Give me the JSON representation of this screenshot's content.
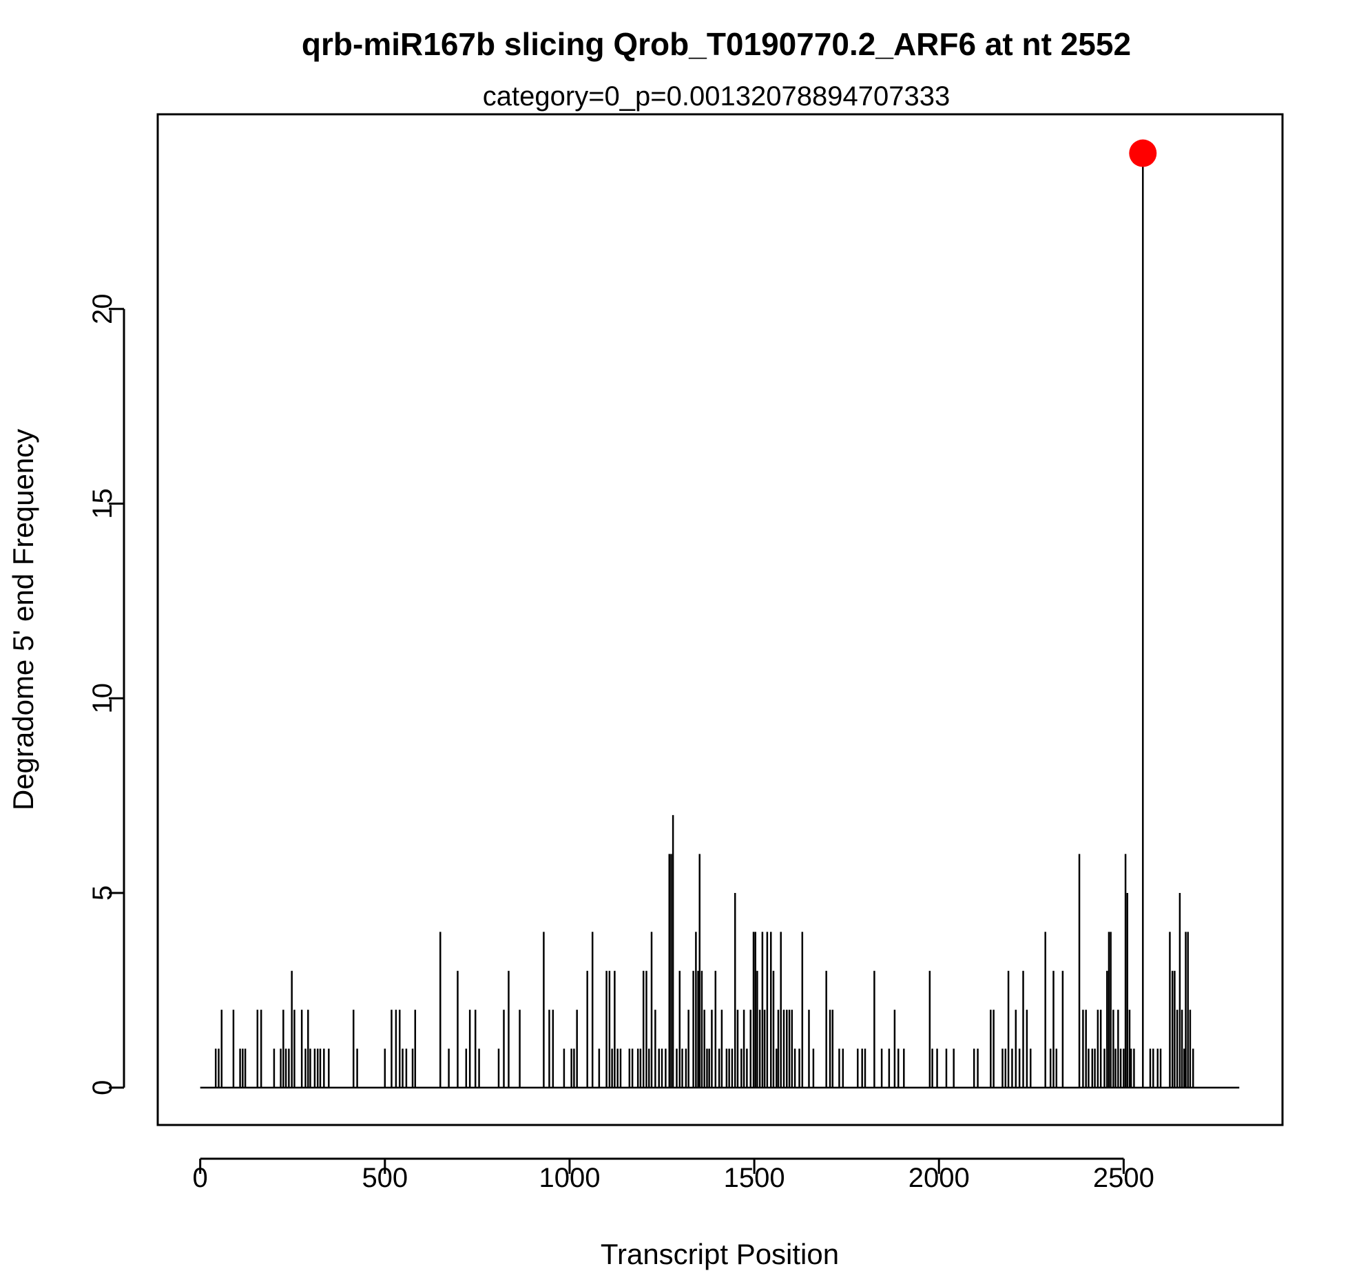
{
  "chart_data": {
    "type": "line",
    "title": "qrb-miR167b slicing Qrob_T0190770.2_ARF6 at nt 2552",
    "subtitle": "category=0_p=0.00132078894707333",
    "xlabel": "Transcript Position",
    "ylabel": "Degradome 5' end Frequency",
    "xlim": [
      -115,
      2930
    ],
    "ylim": [
      -0.96,
      25
    ],
    "grid": false,
    "x_ticks": [
      0,
      500,
      1000,
      1500,
      2000,
      2500
    ],
    "x_tick_labels": [
      "0",
      "500",
      "1000",
      "1500",
      "2000",
      "2500"
    ],
    "y_ticks": [
      0,
      5,
      10,
      15,
      20
    ],
    "y_tick_labels": [
      "0",
      "5",
      "10",
      "15",
      "20"
    ],
    "transcript_length": 2813,
    "line_color": "#000000",
    "highlight": {
      "x": 2552,
      "y": 24,
      "color": "#ff0000"
    },
    "series": [
      {
        "values": [
          [
            42,
            1
          ],
          [
            50,
            1
          ],
          [
            58,
            2
          ],
          [
            90,
            2
          ],
          [
            108,
            1
          ],
          [
            115,
            1
          ],
          [
            122,
            1
          ],
          [
            155,
            2
          ],
          [
            165,
            2
          ],
          [
            200,
            1
          ],
          [
            218,
            1
          ],
          [
            225,
            2
          ],
          [
            232,
            1
          ],
          [
            240,
            1
          ],
          [
            248,
            3
          ],
          [
            255,
            2
          ],
          [
            275,
            2
          ],
          [
            285,
            1
          ],
          [
            292,
            2
          ],
          [
            298,
            1
          ],
          [
            310,
            1
          ],
          [
            318,
            1
          ],
          [
            325,
            1
          ],
          [
            335,
            1
          ],
          [
            348,
            1
          ],
          [
            415,
            2
          ],
          [
            425,
            1
          ],
          [
            500,
            1
          ],
          [
            518,
            2
          ],
          [
            530,
            2
          ],
          [
            540,
            2
          ],
          [
            548,
            1
          ],
          [
            558,
            1
          ],
          [
            575,
            1
          ],
          [
            582,
            2
          ],
          [
            650,
            4
          ],
          [
            673,
            1
          ],
          [
            697,
            3
          ],
          [
            720,
            1
          ],
          [
            730,
            2
          ],
          [
            745,
            2
          ],
          [
            755,
            1
          ],
          [
            808,
            1
          ],
          [
            822,
            2
          ],
          [
            835,
            3
          ],
          [
            865,
            2
          ],
          [
            930,
            4
          ],
          [
            945,
            2
          ],
          [
            955,
            2
          ],
          [
            985,
            1
          ],
          [
            1005,
            1
          ],
          [
            1012,
            1
          ],
          [
            1020,
            2
          ],
          [
            1048,
            3
          ],
          [
            1062,
            4
          ],
          [
            1080,
            1
          ],
          [
            1100,
            3
          ],
          [
            1108,
            3
          ],
          [
            1115,
            1
          ],
          [
            1122,
            3
          ],
          [
            1130,
            1
          ],
          [
            1138,
            1
          ],
          [
            1162,
            1
          ],
          [
            1170,
            1
          ],
          [
            1185,
            1
          ],
          [
            1192,
            1
          ],
          [
            1200,
            3
          ],
          [
            1208,
            3
          ],
          [
            1215,
            1
          ],
          [
            1222,
            4
          ],
          [
            1232,
            2
          ],
          [
            1242,
            1
          ],
          [
            1250,
            1
          ],
          [
            1260,
            1
          ],
          [
            1270,
            6
          ],
          [
            1275,
            6
          ],
          [
            1280,
            7
          ],
          [
            1290,
            1
          ],
          [
            1298,
            3
          ],
          [
            1305,
            1
          ],
          [
            1315,
            1
          ],
          [
            1322,
            2
          ],
          [
            1335,
            3
          ],
          [
            1342,
            4
          ],
          [
            1348,
            3
          ],
          [
            1352,
            6
          ],
          [
            1358,
            3
          ],
          [
            1365,
            2
          ],
          [
            1372,
            1
          ],
          [
            1378,
            1
          ],
          [
            1385,
            2
          ],
          [
            1395,
            3
          ],
          [
            1405,
            1
          ],
          [
            1412,
            2
          ],
          [
            1425,
            1
          ],
          [
            1432,
            1
          ],
          [
            1440,
            1
          ],
          [
            1448,
            5
          ],
          [
            1455,
            2
          ],
          [
            1465,
            1
          ],
          [
            1472,
            2
          ],
          [
            1480,
            1
          ],
          [
            1490,
            2
          ],
          [
            1498,
            4
          ],
          [
            1503,
            4
          ],
          [
            1508,
            3
          ],
          [
            1515,
            2
          ],
          [
            1522,
            4
          ],
          [
            1528,
            2
          ],
          [
            1535,
            4
          ],
          [
            1545,
            4
          ],
          [
            1552,
            3
          ],
          [
            1560,
            1
          ],
          [
            1565,
            2
          ],
          [
            1572,
            4
          ],
          [
            1580,
            2
          ],
          [
            1588,
            2
          ],
          [
            1595,
            2
          ],
          [
            1602,
            2
          ],
          [
            1610,
            1
          ],
          [
            1622,
            1
          ],
          [
            1630,
            4
          ],
          [
            1648,
            2
          ],
          [
            1660,
            1
          ],
          [
            1695,
            3
          ],
          [
            1705,
            2
          ],
          [
            1712,
            2
          ],
          [
            1730,
            1
          ],
          [
            1740,
            1
          ],
          [
            1780,
            1
          ],
          [
            1792,
            1
          ],
          [
            1800,
            1
          ],
          [
            1825,
            3
          ],
          [
            1845,
            1
          ],
          [
            1865,
            1
          ],
          [
            1880,
            2
          ],
          [
            1890,
            1
          ],
          [
            1905,
            1
          ],
          [
            1975,
            3
          ],
          [
            1982,
            1
          ],
          [
            1995,
            1
          ],
          [
            2020,
            1
          ],
          [
            2040,
            1
          ],
          [
            2095,
            1
          ],
          [
            2105,
            1
          ],
          [
            2140,
            2
          ],
          [
            2148,
            2
          ],
          [
            2172,
            1
          ],
          [
            2180,
            1
          ],
          [
            2188,
            3
          ],
          [
            2198,
            1
          ],
          [
            2208,
            2
          ],
          [
            2218,
            1
          ],
          [
            2228,
            3
          ],
          [
            2238,
            2
          ],
          [
            2248,
            1
          ],
          [
            2288,
            4
          ],
          [
            2302,
            1
          ],
          [
            2310,
            3
          ],
          [
            2318,
            1
          ],
          [
            2335,
            3
          ],
          [
            2380,
            6
          ],
          [
            2390,
            2
          ],
          [
            2398,
            2
          ],
          [
            2405,
            1
          ],
          [
            2415,
            1
          ],
          [
            2422,
            1
          ],
          [
            2430,
            2
          ],
          [
            2438,
            2
          ],
          [
            2448,
            1
          ],
          [
            2455,
            3
          ],
          [
            2460,
            4
          ],
          [
            2465,
            4
          ],
          [
            2472,
            2
          ],
          [
            2478,
            1
          ],
          [
            2485,
            2
          ],
          [
            2492,
            1
          ],
          [
            2500,
            1
          ],
          [
            2505,
            6
          ],
          [
            2510,
            5
          ],
          [
            2516,
            2
          ],
          [
            2520,
            1
          ],
          [
            2528,
            1
          ],
          [
            2552,
            24
          ],
          [
            2572,
            1
          ],
          [
            2580,
            1
          ],
          [
            2592,
            1
          ],
          [
            2600,
            1
          ],
          [
            2625,
            4
          ],
          [
            2632,
            3
          ],
          [
            2638,
            3
          ],
          [
            2645,
            2
          ],
          [
            2652,
            5
          ],
          [
            2658,
            2
          ],
          [
            2664,
            1
          ],
          [
            2668,
            4
          ],
          [
            2674,
            4
          ],
          [
            2680,
            2
          ],
          [
            2688,
            1
          ]
        ]
      }
    ]
  }
}
